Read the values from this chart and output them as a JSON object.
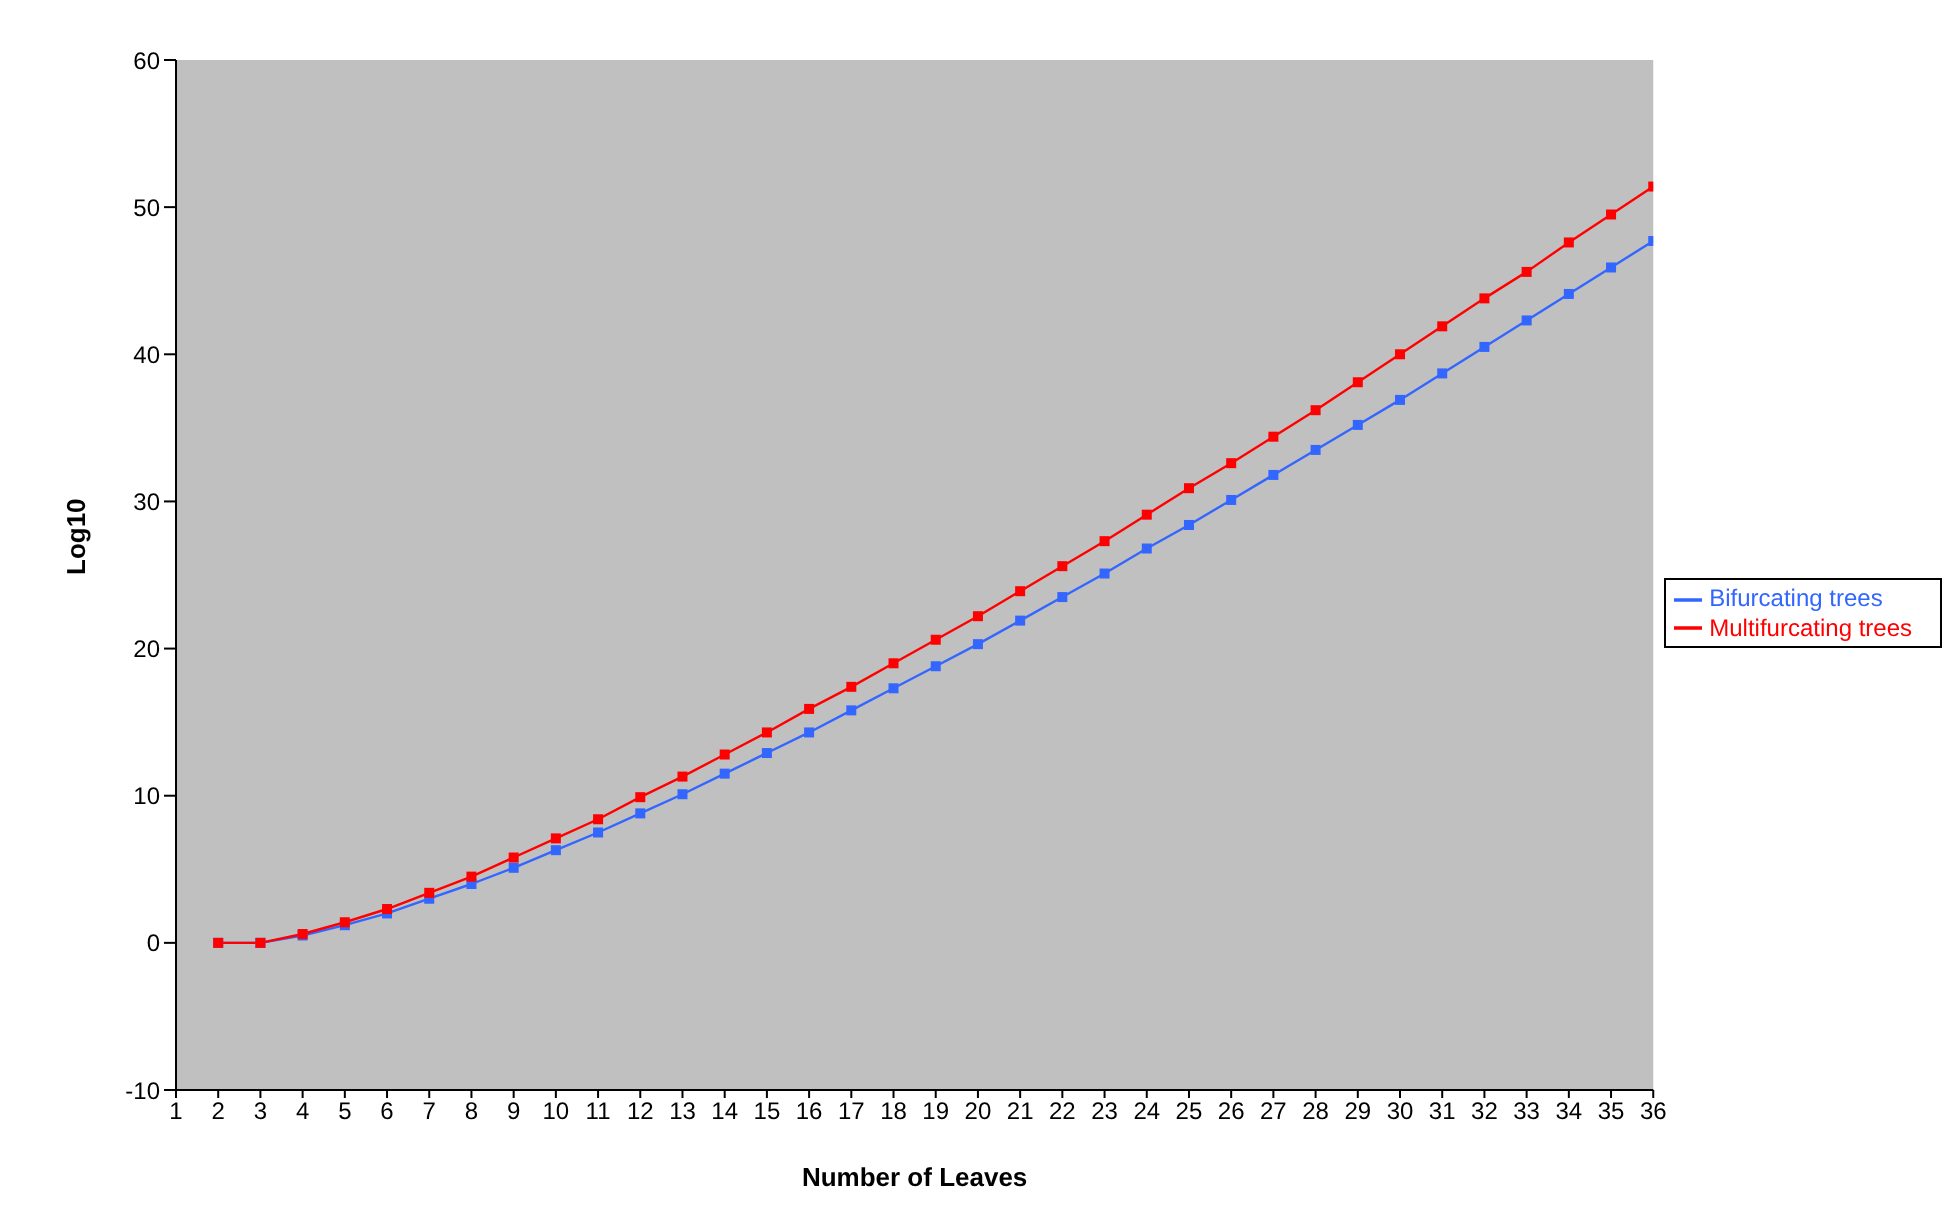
{
  "chart_data": {
    "type": "line",
    "xlabel": "Number of Leaves",
    "ylabel": "Log10",
    "x": [
      2,
      3,
      4,
      5,
      6,
      7,
      8,
      9,
      10,
      11,
      12,
      13,
      14,
      15,
      16,
      17,
      18,
      19,
      20,
      21,
      22,
      23,
      24,
      25,
      26,
      27,
      28,
      29,
      30,
      31,
      32,
      33,
      34,
      35,
      36
    ],
    "series": [
      {
        "name": "Bifurcating trees",
        "color": "#3366ff",
        "values": [
          0,
          0,
          0.5,
          1.2,
          2.0,
          3.0,
          4.0,
          5.1,
          6.3,
          7.5,
          8.8,
          10.1,
          11.5,
          12.9,
          14.3,
          15.8,
          17.3,
          18.8,
          20.3,
          21.9,
          23.5,
          25.1,
          26.8,
          28.4,
          30.1,
          31.8,
          33.5,
          35.2,
          36.9,
          38.7,
          40.5,
          42.3,
          44.1,
          45.9,
          47.7
        ]
      },
      {
        "name": "Multifurcating trees",
        "color": "#ff0000",
        "values": [
          0,
          0,
          0.6,
          1.4,
          2.3,
          3.4,
          4.5,
          5.8,
          7.1,
          8.4,
          9.9,
          11.3,
          12.8,
          14.3,
          15.9,
          17.4,
          19.0,
          20.6,
          22.2,
          23.9,
          25.6,
          27.3,
          29.1,
          30.9,
          32.6,
          34.4,
          36.2,
          38.1,
          40.0,
          41.9,
          43.8,
          45.6,
          47.6,
          49.5,
          51.4
        ]
      }
    ],
    "xlim": [
      1,
      36
    ],
    "xticks": [
      1,
      2,
      3,
      4,
      5,
      6,
      7,
      8,
      9,
      10,
      11,
      12,
      13,
      14,
      15,
      16,
      17,
      18,
      19,
      20,
      21,
      22,
      23,
      24,
      25,
      26,
      27,
      28,
      29,
      30,
      31,
      32,
      33,
      34,
      35,
      36
    ],
    "ylim": [
      -10,
      60
    ],
    "yticks": [
      -10,
      0,
      10,
      20,
      30,
      40,
      50,
      60
    ],
    "grid": false,
    "legend": "right",
    "marker": "square",
    "line_style": "solid"
  }
}
